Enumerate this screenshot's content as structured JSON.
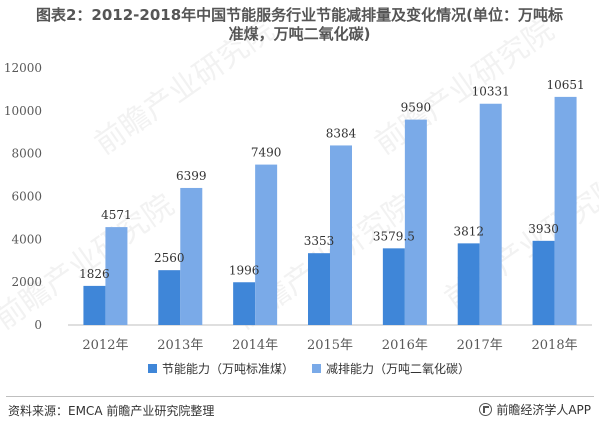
{
  "title": {
    "line1": "图表2：2012-2018年中国节能服务行业节能减排量及变化情况(单位：万吨标",
    "line2": "准煤，万吨二氧化碳)"
  },
  "footer": {
    "source": "资料来源：EMCA 前瞻产业研究院整理",
    "brand": "前瞻经济学人APP"
  },
  "watermark": "前瞻产业研究院",
  "colors": {
    "series1": "#3f86d8",
    "series2": "#7aaae8",
    "axis": "#bfbfbf",
    "text": "#595959",
    "label": "#333333"
  },
  "chart_data": {
    "type": "bar",
    "categories": [
      "2012年",
      "2013年",
      "2014年",
      "2015年",
      "2016年",
      "2017年",
      "2018年"
    ],
    "series": [
      {
        "name": "节能能力（万吨标准煤）",
        "values": [
          1826,
          2560,
          1996,
          3353,
          3579.5,
          3812,
          3930
        ],
        "labels": [
          "1826",
          "2560",
          "1996",
          "3353",
          "3579.5",
          "3812",
          "3930"
        ]
      },
      {
        "name": "减排能力（万吨二氧化碳）",
        "values": [
          4571,
          6399,
          7490,
          8384,
          9590,
          10331,
          10651
        ],
        "labels": [
          "4571",
          "6399",
          "7490",
          "8384",
          "9590",
          "10331",
          "10651"
        ]
      }
    ],
    "yticks": [
      "0",
      "2000",
      "4000",
      "6000",
      "8000",
      "10000",
      "12000"
    ],
    "ylim": [
      0,
      12000
    ],
    "grid": false,
    "legend": "bottom"
  }
}
